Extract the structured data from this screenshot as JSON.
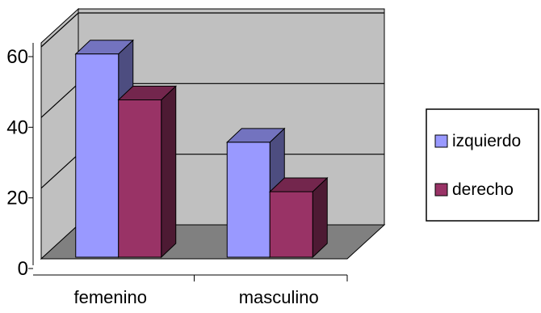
{
  "chart_data": {
    "type": "bar",
    "title": "",
    "xlabel": "",
    "ylabel": "",
    "categories": [
      "femenino",
      "masculino"
    ],
    "series": [
      {
        "name": "izquierdo",
        "values": [
          58,
          33
        ],
        "color": "#9999ff"
      },
      {
        "name": "derecho",
        "values": [
          45,
          19
        ],
        "color": "#993366"
      }
    ],
    "ylim": [
      0,
      60
    ],
    "yticks": [
      0,
      20,
      40,
      60
    ],
    "grid": true,
    "style": "3d-clustered",
    "wall_color": "#c0c0c0",
    "floor_color": "#808080",
    "legend": {
      "position": "right",
      "entries": [
        "izquierdo",
        "derecho"
      ]
    }
  }
}
